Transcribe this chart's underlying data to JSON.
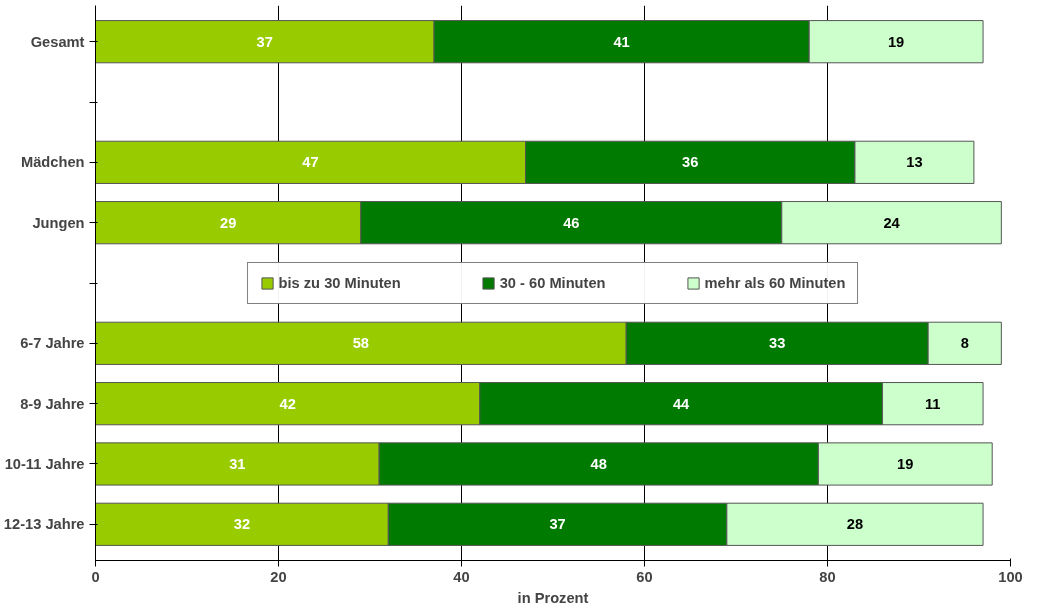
{
  "chart_data": {
    "type": "bar",
    "orientation": "horizontal",
    "stacked": true,
    "categories": [
      "Gesamt",
      null,
      "Mädchen",
      "Jungen",
      null,
      "6-7 Jahre",
      "8-9 Jahre",
      "10-11 Jahre",
      "12-13 Jahre"
    ],
    "series": [
      {
        "name": "bis zu 30 Minuten",
        "color": "#99cc00",
        "values": [
          37,
          null,
          47,
          29,
          null,
          58,
          42,
          31,
          32
        ]
      },
      {
        "name": "30 - 60 Minuten",
        "color": "#007a00",
        "values": [
          41,
          null,
          36,
          46,
          null,
          33,
          44,
          48,
          37
        ]
      },
      {
        "name": "mehr als 60 Minuten",
        "color": "#ccffcc",
        "values": [
          19,
          null,
          13,
          24,
          null,
          8,
          11,
          19,
          28
        ]
      }
    ],
    "xlim": [
      0,
      100
    ],
    "xticks": [
      0,
      20,
      40,
      60,
      80,
      100
    ],
    "xlabel": "in Prozent",
    "grid": "x",
    "legend": "center",
    "data_labels": true
  }
}
